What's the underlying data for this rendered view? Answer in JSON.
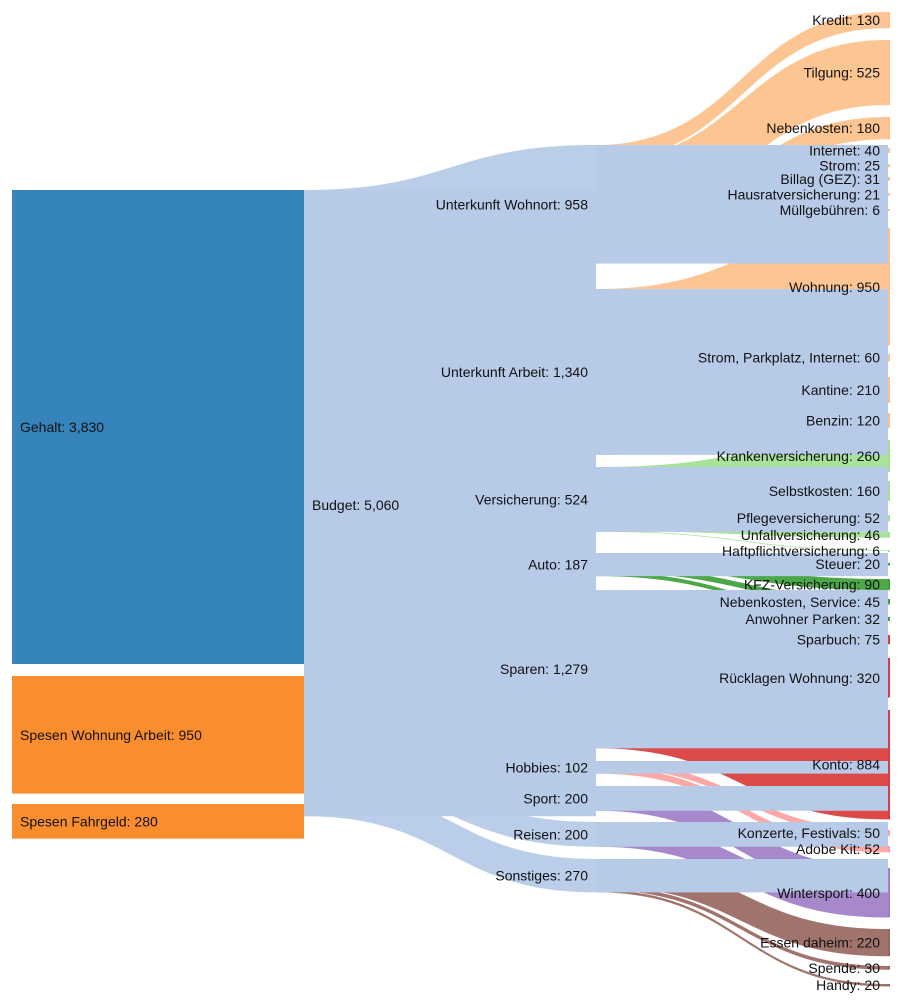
{
  "chart_data": {
    "type": "sankey",
    "nodes": [
      {
        "id": "gehalt",
        "label": "Gehalt: 3,830",
        "color": "#3584bb"
      },
      {
        "id": "spesen_wohnung",
        "label": "Spesen Wohnung Arbeit: 950",
        "color": "#fa8d2e"
      },
      {
        "id": "spesen_fahrgeld",
        "label": "Spesen Fahrgeld: 280",
        "color": "#fa8d2e"
      },
      {
        "id": "budget",
        "label": "Budget: 5,060",
        "color": "#b7cbe8"
      },
      {
        "id": "wohnort",
        "label": "Unterkunft Wohnort: 958",
        "color": "#b7cbe8"
      },
      {
        "id": "arbeit",
        "label": "Unterkunft Arbeit: 1,340",
        "color": "#b7cbe8"
      },
      {
        "id": "versicherung",
        "label": "Versicherung: 524",
        "color": "#b7cbe8"
      },
      {
        "id": "auto",
        "label": "Auto: 187",
        "color": "#b7cbe8"
      },
      {
        "id": "sparen",
        "label": "Sparen: 1,279",
        "color": "#b7cbe8"
      },
      {
        "id": "hobbies",
        "label": "Hobbies: 102",
        "color": "#b7cbe8"
      },
      {
        "id": "sport",
        "label": "Sport: 200",
        "color": "#b7cbe8"
      },
      {
        "id": "reisen",
        "label": "Reisen: 200",
        "color": "#b7cbe8"
      },
      {
        "id": "sonstiges",
        "label": "Sonstiges: 270",
        "color": "#b7cbe8"
      },
      {
        "id": "kredit",
        "label": "Kredit: 130",
        "color": "#fdc089"
      },
      {
        "id": "tilgung",
        "label": "Tilgung: 525",
        "color": "#fdc089"
      },
      {
        "id": "nebenkosten",
        "label": "Nebenkosten: 180",
        "color": "#fdc089"
      },
      {
        "id": "internet",
        "label": "Internet: 40",
        "color": "#fdc089"
      },
      {
        "id": "strom",
        "label": "Strom: 25",
        "color": "#fdc089"
      },
      {
        "id": "billag",
        "label": "Billag (GEZ): 31",
        "color": "#fdc089"
      },
      {
        "id": "hausrat",
        "label": "Hausratversicherung: 21",
        "color": "#fdc089"
      },
      {
        "id": "muell",
        "label": "Müllgebühren: 6",
        "color": "#fdc089"
      },
      {
        "id": "wohnung",
        "label": "Wohnung: 950",
        "color": "#fdc089"
      },
      {
        "id": "strom_park",
        "label": "Strom, Parkplatz, Internet: 60",
        "color": "#fdc089"
      },
      {
        "id": "kantine",
        "label": "Kantine: 210",
        "color": "#fdc089"
      },
      {
        "id": "benzin",
        "label": "Benzin: 120",
        "color": "#fdc089"
      },
      {
        "id": "kranken",
        "label": "Krankenversicherung: 260",
        "color": "#a2df92"
      },
      {
        "id": "selbst",
        "label": "Selbstkosten: 160",
        "color": "#a2df92"
      },
      {
        "id": "pflege",
        "label": "Pflegeversicherung: 52",
        "color": "#a2df92"
      },
      {
        "id": "unfall",
        "label": "Unfallversicherung: 46",
        "color": "#a2df92"
      },
      {
        "id": "haftpflicht",
        "label": "Haftpflichtversicherung: 6",
        "color": "#a2df92"
      },
      {
        "id": "steuer",
        "label": "Steuer: 20",
        "color": "#3ea13a"
      },
      {
        "id": "kfz",
        "label": "KFZ-Versicherung: 90",
        "color": "#3ea13a"
      },
      {
        "id": "service",
        "label": "Nebenkosten, Service: 45",
        "color": "#3ea13a"
      },
      {
        "id": "anwohner",
        "label": "Anwohner Parken: 32",
        "color": "#3ea13a"
      },
      {
        "id": "sparbuch",
        "label": "Sparbuch: 75",
        "color": "#d93c3b"
      },
      {
        "id": "ruecklagen",
        "label": "Rücklagen Wohnung: 320",
        "color": "#d93c3b"
      },
      {
        "id": "konto",
        "label": "Konto: 884",
        "color": "#d93c3b"
      },
      {
        "id": "konzerte",
        "label": "Konzerte, Festivals: 50",
        "color": "#fba1a0"
      },
      {
        "id": "adobe",
        "label": "Adobe Kit: 52",
        "color": "#fba1a0"
      },
      {
        "id": "wintersport",
        "label": "Wintersport: 400",
        "color": "#a07fc7"
      },
      {
        "id": "essen",
        "label": "Essen daheim: 220",
        "color": "#986860"
      },
      {
        "id": "spende",
        "label": "Spende: 30",
        "color": "#986860"
      },
      {
        "id": "handy",
        "label": "Handy: 20",
        "color": "#986860"
      }
    ],
    "links": [
      {
        "source": "gehalt",
        "target": "budget",
        "value": 3830
      },
      {
        "source": "spesen_wohnung",
        "target": "budget",
        "value": 950
      },
      {
        "source": "spesen_fahrgeld",
        "target": "budget",
        "value": 280
      },
      {
        "source": "budget",
        "target": "wohnort",
        "value": 958
      },
      {
        "source": "budget",
        "target": "arbeit",
        "value": 1340
      },
      {
        "source": "budget",
        "target": "versicherung",
        "value": 524
      },
      {
        "source": "budget",
        "target": "auto",
        "value": 187
      },
      {
        "source": "budget",
        "target": "sparen",
        "value": 1279
      },
      {
        "source": "budget",
        "target": "hobbies",
        "value": 102
      },
      {
        "source": "budget",
        "target": "sport",
        "value": 200
      },
      {
        "source": "budget",
        "target": "reisen",
        "value": 200
      },
      {
        "source": "budget",
        "target": "sonstiges",
        "value": 270
      },
      {
        "source": "wohnort",
        "target": "kredit",
        "value": 130
      },
      {
        "source": "wohnort",
        "target": "tilgung",
        "value": 525
      },
      {
        "source": "wohnort",
        "target": "nebenkosten",
        "value": 180
      },
      {
        "source": "wohnort",
        "target": "internet",
        "value": 40
      },
      {
        "source": "wohnort",
        "target": "strom",
        "value": 25
      },
      {
        "source": "wohnort",
        "target": "billag",
        "value": 31
      },
      {
        "source": "wohnort",
        "target": "hausrat",
        "value": 21
      },
      {
        "source": "wohnort",
        "target": "muell",
        "value": 6
      },
      {
        "source": "arbeit",
        "target": "wohnung",
        "value": 950
      },
      {
        "source": "arbeit",
        "target": "strom_park",
        "value": 60
      },
      {
        "source": "arbeit",
        "target": "kantine",
        "value": 210
      },
      {
        "source": "arbeit",
        "target": "benzin",
        "value": 120
      },
      {
        "source": "versicherung",
        "target": "kranken",
        "value": 260
      },
      {
        "source": "versicherung",
        "target": "selbst",
        "value": 160
      },
      {
        "source": "versicherung",
        "target": "pflege",
        "value": 52
      },
      {
        "source": "versicherung",
        "target": "unfall",
        "value": 46
      },
      {
        "source": "versicherung",
        "target": "haftpflicht",
        "value": 6
      },
      {
        "source": "auto",
        "target": "steuer",
        "value": 20
      },
      {
        "source": "auto",
        "target": "kfz",
        "value": 90
      },
      {
        "source": "auto",
        "target": "service",
        "value": 45
      },
      {
        "source": "auto",
        "target": "anwohner",
        "value": 32
      },
      {
        "source": "sparen",
        "target": "sparbuch",
        "value": 75
      },
      {
        "source": "sparen",
        "target": "ruecklagen",
        "value": 320
      },
      {
        "source": "sparen",
        "target": "konto",
        "value": 884
      },
      {
        "source": "hobbies",
        "target": "konzerte",
        "value": 50
      },
      {
        "source": "hobbies",
        "target": "adobe",
        "value": 52
      },
      {
        "source": "sport",
        "target": "wintersport",
        "value": 200
      },
      {
        "source": "reisen",
        "target": "wintersport",
        "value": 200
      },
      {
        "source": "sonstiges",
        "target": "essen",
        "value": 220
      },
      {
        "source": "sonstiges",
        "target": "spende",
        "value": 30
      },
      {
        "source": "sonstiges",
        "target": "handy",
        "value": 20
      }
    ]
  }
}
